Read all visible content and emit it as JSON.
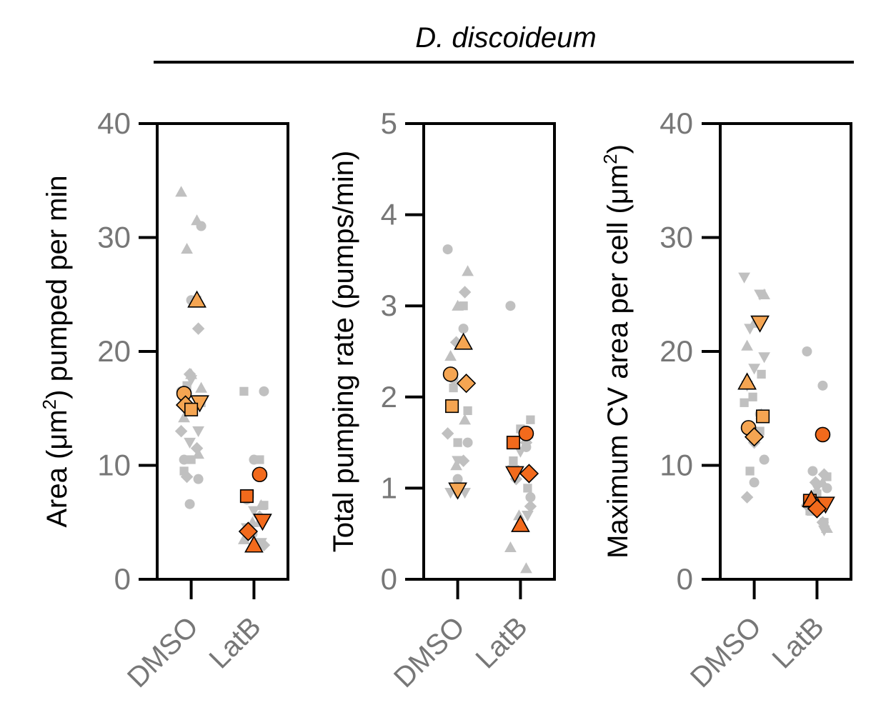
{
  "header": {
    "title": "D. discoideum"
  },
  "colors": {
    "replicate_points": "#c0c0c0",
    "dmso_mean": "#f5a552",
    "latb_mean": "#f26a1c",
    "axis": "#000000",
    "tick_text": "#777777"
  },
  "chart_data": [
    {
      "type": "scatter",
      "ylabel_parts": [
        "Area (μm",
        "2",
        ") pumped per min"
      ],
      "categories": [
        "DMSO",
        "LatB"
      ],
      "ylim": [
        0,
        40
      ],
      "yticks": [
        "0",
        "10",
        "20",
        "30",
        "40"
      ],
      "grid": false,
      "series": [
        {
          "group": "DMSO",
          "replicates": [
            {
              "shape": "triangle",
              "values": [
                34,
                31.5,
                29,
                16.8,
                18,
                14.2,
                11
              ]
            },
            {
              "shape": "circle",
              "values": [
                31,
                24.5,
                10.5,
                8.8,
                6.6,
                16.5
              ]
            },
            {
              "shape": "diamond",
              "values": [
                22,
                18,
                13,
                11.5,
                9
              ]
            },
            {
              "shape": "square",
              "values": [
                24.5,
                17,
                15.5,
                10.5,
                9.5
              ]
            },
            {
              "shape": "triangle-down",
              "values": [
                17.5,
                15.5,
                13,
                12
              ]
            }
          ],
          "means": [
            {
              "shape": "triangle",
              "value": 24.5
            },
            {
              "shape": "circle",
              "value": 16.3
            },
            {
              "shape": "triangle-down",
              "value": 15.5
            },
            {
              "shape": "diamond",
              "value": 15.3
            },
            {
              "shape": "square",
              "value": 14.9
            }
          ]
        },
        {
          "group": "LatB",
          "replicates": [
            {
              "shape": "square",
              "values": [
                16.5,
                10.5,
                7.5,
                6.5
              ]
            },
            {
              "shape": "circle",
              "values": [
                16.5,
                10.5,
                7,
                5,
                4
              ]
            },
            {
              "shape": "triangle",
              "values": [
                6.5,
                5,
                3.5
              ]
            },
            {
              "shape": "diamond",
              "values": [
                5.5,
                4,
                3
              ]
            },
            {
              "shape": "triangle-down",
              "values": [
                6,
                4.5,
                3.2
              ]
            }
          ],
          "means": [
            {
              "shape": "circle",
              "value": 9.2
            },
            {
              "shape": "square",
              "value": 7.3
            },
            {
              "shape": "triangle-down",
              "value": 5.1
            },
            {
              "shape": "diamond",
              "value": 4.2
            },
            {
              "shape": "triangle",
              "value": 3.0
            }
          ]
        }
      ]
    },
    {
      "type": "scatter",
      "ylabel_parts": [
        "Total pumping rate (pumps/min)"
      ],
      "categories": [
        "DMSO",
        "LatB"
      ],
      "ylim": [
        0,
        5
      ],
      "yticks": [
        "0",
        "1",
        "2",
        "3",
        "4",
        "5"
      ],
      "grid": false,
      "series": [
        {
          "group": "DMSO",
          "replicates": [
            {
              "shape": "circle",
              "values": [
                3.62,
                2.75,
                2.2,
                1.5,
                1.1
              ]
            },
            {
              "shape": "triangle",
              "values": [
                3.38,
                3.0,
                2.45,
                1.75,
                1.25
              ]
            },
            {
              "shape": "diamond",
              "values": [
                3.15,
                2.6,
                1.6,
                1.3
              ]
            },
            {
              "shape": "square",
              "values": [
                3.0,
                2.1,
                1.85,
                1.5
              ]
            },
            {
              "shape": "triangle-down",
              "values": [
                1.3,
                0.95,
                0.95,
                0.95
              ]
            }
          ],
          "means": [
            {
              "shape": "triangle",
              "value": 2.6
            },
            {
              "shape": "circle",
              "value": 2.25
            },
            {
              "shape": "diamond",
              "value": 2.15
            },
            {
              "shape": "square",
              "value": 1.9
            },
            {
              "shape": "triangle-down",
              "value": 0.98
            }
          ]
        },
        {
          "group": "LatB",
          "replicates": [
            {
              "shape": "circle",
              "values": [
                3.0,
                1.45,
                1.2,
                0.9,
                0.6
              ]
            },
            {
              "shape": "square",
              "values": [
                1.75,
                1.65,
                1.3,
                1.0
              ]
            },
            {
              "shape": "triangle",
              "values": [
                1.6,
                0.7,
                0.35,
                0.12
              ]
            },
            {
              "shape": "diamond",
              "values": [
                1.5,
                1.1,
                0.8
              ]
            },
            {
              "shape": "triangle-down",
              "values": [
                1.4,
                1.2,
                0.7
              ]
            }
          ],
          "means": [
            {
              "shape": "circle",
              "value": 1.6
            },
            {
              "shape": "square",
              "value": 1.5
            },
            {
              "shape": "diamond",
              "value": 1.16
            },
            {
              "shape": "triangle-down",
              "value": 1.16
            },
            {
              "shape": "triangle",
              "value": 0.6
            }
          ]
        }
      ]
    },
    {
      "type": "scatter",
      "ylabel_parts": [
        "Maximum CV area per cell (μm",
        "2",
        ")"
      ],
      "categories": [
        "DMSO",
        "LatB"
      ],
      "ylim": [
        0,
        40
      ],
      "yticks": [
        "0",
        "10",
        "20",
        "30",
        "40"
      ],
      "grid": false,
      "series": [
        {
          "group": "DMSO",
          "replicates": [
            {
              "shape": "triangle-down",
              "values": [
                26.5,
                25,
                22,
                19.5,
                18.5,
                17
              ]
            },
            {
              "shape": "triangle",
              "values": [
                25,
                22.5,
                20.5,
                14.5
              ]
            },
            {
              "shape": "square",
              "values": [
                18,
                16,
                15.5,
                13,
                9.5
              ]
            },
            {
              "shape": "circle",
              "values": [
                14.5,
                13,
                10.5,
                8.5
              ]
            },
            {
              "shape": "diamond",
              "values": [
                12,
                7.2
              ]
            }
          ],
          "means": [
            {
              "shape": "triangle-down",
              "value": 22.5
            },
            {
              "shape": "triangle",
              "value": 17.3
            },
            {
              "shape": "square",
              "value": 14.3
            },
            {
              "shape": "circle",
              "value": 13.3
            },
            {
              "shape": "diamond",
              "value": 12.5
            }
          ]
        },
        {
          "group": "LatB",
          "replicates": [
            {
              "shape": "circle",
              "values": [
                20,
                17,
                9.5,
                8,
                6
              ]
            },
            {
              "shape": "square",
              "values": [
                9,
                7.5,
                6,
                5
              ]
            },
            {
              "shape": "diamond",
              "values": [
                9.2,
                8.5,
                6.5,
                5
              ]
            },
            {
              "shape": "triangle",
              "values": [
                8.5,
                6,
                4.5
              ]
            },
            {
              "shape": "triangle-down",
              "values": [
                8,
                6.5,
                4.3
              ]
            }
          ],
          "means": [
            {
              "shape": "circle",
              "value": 12.7
            },
            {
              "shape": "square",
              "value": 6.9
            },
            {
              "shape": "triangle-down",
              "value": 6.6
            },
            {
              "shape": "triangle",
              "value": 7.0
            },
            {
              "shape": "diamond",
              "value": 6.2
            }
          ]
        }
      ]
    }
  ]
}
